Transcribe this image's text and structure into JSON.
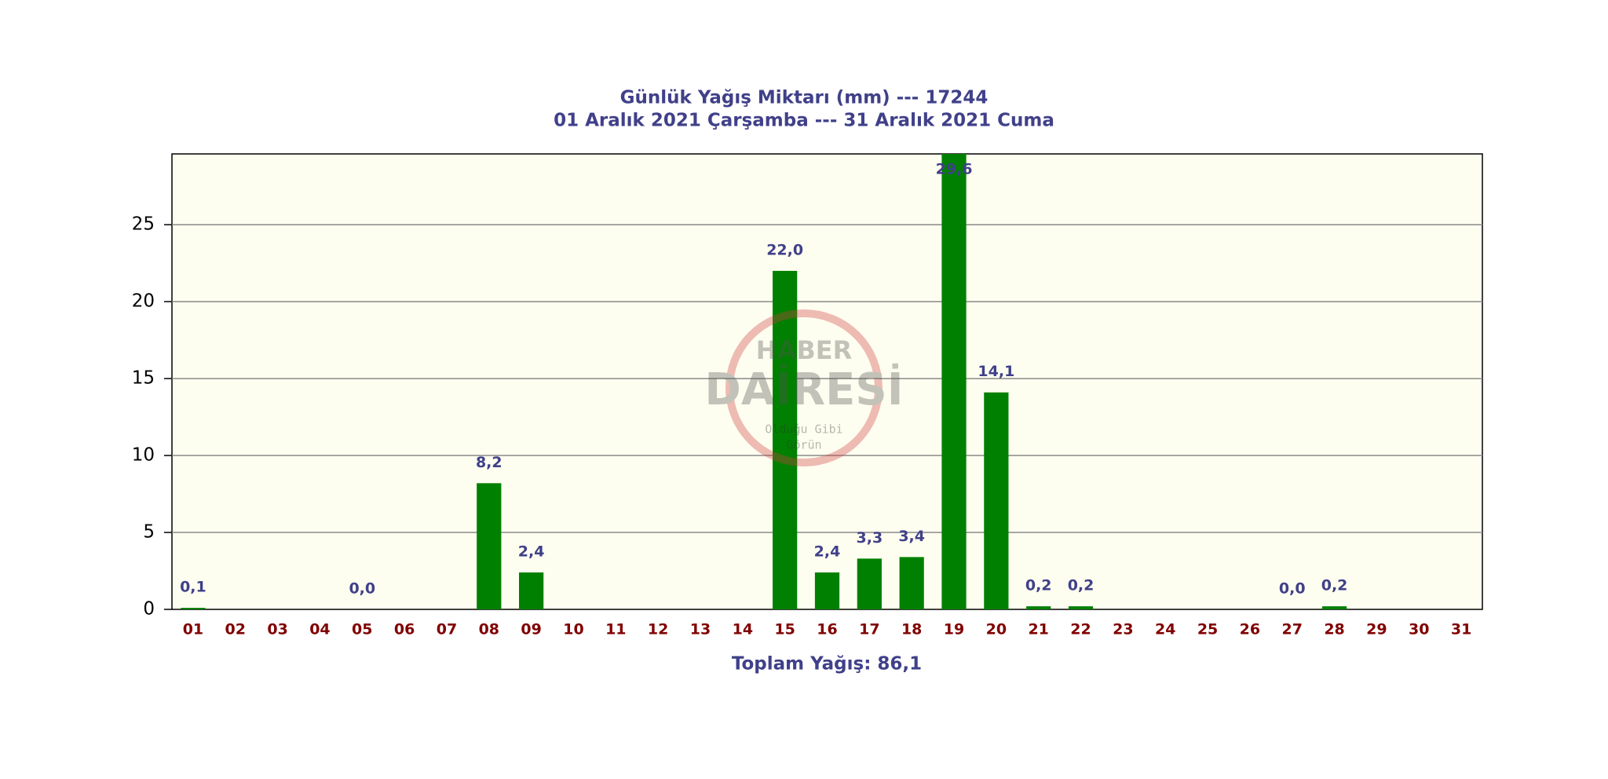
{
  "chart_data": {
    "type": "bar",
    "title": "Günlük Yağış Miktarı (mm) --- 17244",
    "subtitle": "01 Aralık 2021 Çarşamba --- 31 Aralık 2021 Cuma",
    "footer": "Toplam Yağış: 86,1",
    "watermark": [
      "HABER",
      "DAİRESİ",
      "Olduğu Gibi",
      "Görün"
    ],
    "categories": [
      "01",
      "02",
      "03",
      "04",
      "05",
      "06",
      "07",
      "08",
      "09",
      "10",
      "11",
      "12",
      "13",
      "14",
      "15",
      "16",
      "17",
      "18",
      "19",
      "20",
      "21",
      "22",
      "23",
      "24",
      "25",
      "26",
      "27",
      "28",
      "29",
      "30",
      "31"
    ],
    "values": [
      0.1,
      null,
      null,
      null,
      0.0,
      null,
      null,
      8.2,
      2.4,
      null,
      null,
      null,
      null,
      null,
      22.0,
      2.4,
      3.3,
      3.4,
      29.6,
      14.1,
      0.2,
      0.2,
      null,
      null,
      null,
      null,
      0.0,
      0.2,
      null,
      null,
      null
    ],
    "value_labels": [
      "0,1",
      null,
      null,
      null,
      "0,0",
      null,
      null,
      "8,2",
      "2,4",
      null,
      null,
      null,
      null,
      null,
      "22,0",
      "2,4",
      "3,3",
      "3,4",
      "29,6",
      "14,1",
      "0,2",
      "0,2",
      null,
      null,
      null,
      null,
      "0,0",
      "0,2",
      null,
      null,
      null
    ],
    "color": "#008000",
    "ylim": [
      0,
      29.6
    ],
    "yticks": [
      0,
      5,
      10,
      15,
      20,
      25
    ],
    "grid": true
  }
}
